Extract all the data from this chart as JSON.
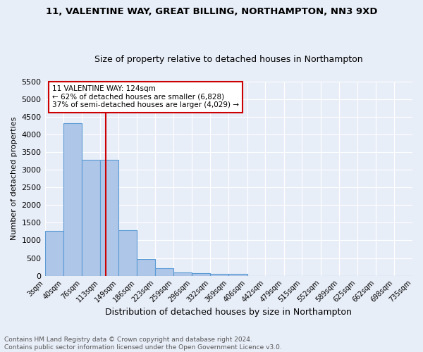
{
  "title1": "11, VALENTINE WAY, GREAT BILLING, NORTHAMPTON, NN3 9XD",
  "title2": "Size of property relative to detached houses in Northampton",
  "xlabel": "Distribution of detached houses by size in Northampton",
  "ylabel": "Number of detached properties",
  "footer1": "Contains HM Land Registry data © Crown copyright and database right 2024.",
  "footer2": "Contains public sector information licensed under the Open Government Licence v3.0.",
  "annotation_line1": "11 VALENTINE WAY: 124sqm",
  "annotation_line2": "← 62% of detached houses are smaller (6,828)",
  "annotation_line3": "37% of semi-detached houses are larger (4,029) →",
  "property_size": 124,
  "bar_edges": [
    3,
    40,
    76,
    113,
    149,
    186,
    223,
    259,
    296,
    332,
    369,
    406,
    442,
    479,
    515,
    552,
    589,
    625,
    662,
    698,
    735
  ],
  "bar_heights": [
    1270,
    4320,
    3290,
    3290,
    1290,
    480,
    215,
    95,
    75,
    55,
    60,
    0,
    0,
    0,
    0,
    0,
    0,
    0,
    0,
    0
  ],
  "bar_color": "#aec6e8",
  "bar_edge_color": "#5a9bd5",
  "vline_color": "#cc0000",
  "vline_x": 124,
  "ylim": [
    0,
    5500
  ],
  "yticks": [
    0,
    500,
    1000,
    1500,
    2000,
    2500,
    3000,
    3500,
    4000,
    4500,
    5000,
    5500
  ],
  "background_color": "#e8eef8",
  "grid_color": "#ffffff",
  "annotation_box_color": "#ffffff",
  "annotation_box_edge": "#cc0000",
  "title1_fontsize": 9.5,
  "title2_fontsize": 9.0,
  "ylabel_fontsize": 8,
  "xlabel_fontsize": 9,
  "tick_fontsize": 8,
  "xtick_fontsize": 7,
  "footer_fontsize": 6.5,
  "ann_fontsize": 7.5
}
